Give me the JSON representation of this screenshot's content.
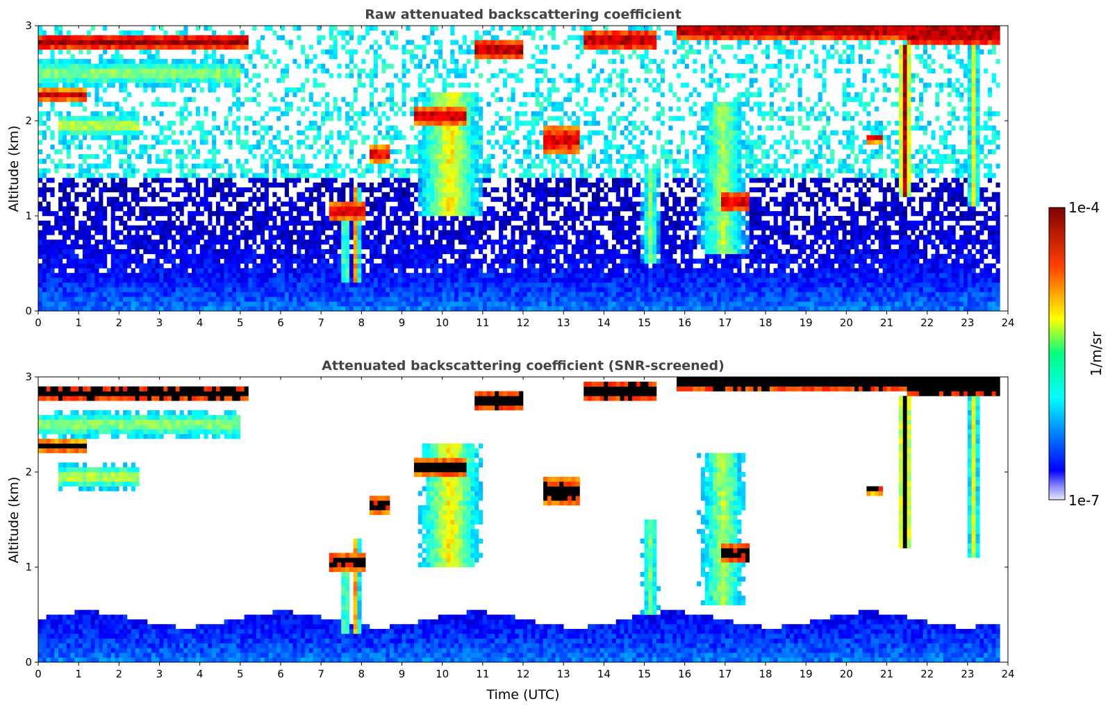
{
  "chart_data": [
    {
      "type": "heatmap",
      "title": "Raw attenuated backscattering coefficient",
      "xlabel": "",
      "ylabel": "Altitude (km)",
      "xlim": [
        0,
        24
      ],
      "ylim": [
        0,
        3
      ],
      "xticks": [
        0,
        1,
        2,
        3,
        4,
        5,
        6,
        7,
        8,
        9,
        10,
        11,
        12,
        13,
        14,
        15,
        16,
        17,
        18,
        19,
        20,
        21,
        22,
        23,
        24
      ],
      "yticks": [
        0,
        1,
        2,
        3
      ],
      "screened": false,
      "features": [
        {
          "kind": "layer",
          "t0": 0.0,
          "t1": 5.2,
          "alt": 2.83,
          "thick": 0.08,
          "level": 1.0
        },
        {
          "kind": "layer",
          "t0": 0.0,
          "t1": 1.2,
          "alt": 2.27,
          "thick": 0.06,
          "level": 0.95
        },
        {
          "kind": "layer",
          "t0": 10.8,
          "t1": 12.0,
          "alt": 2.75,
          "thick": 0.1,
          "level": 1.0
        },
        {
          "kind": "layer",
          "t0": 13.5,
          "t1": 15.3,
          "alt": 2.85,
          "thick": 0.1,
          "level": 1.0
        },
        {
          "kind": "layer",
          "t0": 15.8,
          "t1": 24.0,
          "alt": 2.95,
          "thick": 0.1,
          "level": 1.0
        },
        {
          "kind": "layer",
          "t0": 21.5,
          "t1": 23.8,
          "alt": 2.9,
          "thick": 0.12,
          "level": 1.0
        },
        {
          "kind": "layer",
          "t0": 9.3,
          "t1": 10.6,
          "alt": 2.05,
          "thick": 0.08,
          "level": 1.0
        },
        {
          "kind": "layer",
          "t0": 8.2,
          "t1": 8.7,
          "alt": 1.65,
          "thick": 0.08,
          "level": 0.95
        },
        {
          "kind": "layer",
          "t0": 7.2,
          "t1": 8.1,
          "alt": 1.05,
          "thick": 0.1,
          "level": 0.95
        },
        {
          "kind": "layer",
          "t0": 12.5,
          "t1": 13.4,
          "alt": 1.8,
          "thick": 0.15,
          "level": 0.95
        },
        {
          "kind": "layer",
          "t0": 16.9,
          "t1": 17.6,
          "alt": 1.15,
          "thick": 0.12,
          "level": 0.95
        },
        {
          "kind": "layer",
          "t0": 20.5,
          "t1": 20.9,
          "alt": 1.82,
          "thick": 0.05,
          "level": 0.9
        },
        {
          "kind": "diffuse",
          "t0": 0.5,
          "t1": 2.5,
          "alt": 1.95,
          "thick": 0.25,
          "level": 0.6
        },
        {
          "kind": "diffuse",
          "t0": 0.0,
          "t1": 5.0,
          "alt": 2.5,
          "thick": 0.3,
          "level": 0.55
        },
        {
          "kind": "plume",
          "t0": 9.4,
          "t1": 11.0,
          "top": 2.3,
          "bottom": 1.0,
          "level": 0.65
        },
        {
          "kind": "plume",
          "t0": 16.3,
          "t1": 17.6,
          "top": 2.2,
          "bottom": 0.6,
          "level": 0.55
        },
        {
          "kind": "plume",
          "t0": 14.9,
          "t1": 15.4,
          "top": 1.5,
          "bottom": 0.5,
          "level": 0.5
        },
        {
          "kind": "streak",
          "t0": 21.3,
          "t1": 21.6,
          "top": 2.8,
          "bottom": 1.2,
          "level": 0.95
        },
        {
          "kind": "streak",
          "t0": 23.0,
          "t1": 23.3,
          "top": 2.9,
          "bottom": 1.1,
          "level": 0.6
        },
        {
          "kind": "streak",
          "t0": 7.5,
          "t1": 7.7,
          "top": 1.1,
          "bottom": 0.3,
          "level": 0.6
        },
        {
          "kind": "streak",
          "t0": 7.8,
          "t1": 7.95,
          "top": 1.3,
          "bottom": 0.3,
          "level": 0.9
        }
      ]
    },
    {
      "type": "heatmap",
      "title": "Attenuated backscattering coefficient (SNR-screened)",
      "xlabel": "Time (UTC)",
      "ylabel": "Altitude (km)",
      "xlim": [
        0,
        24
      ],
      "ylim": [
        0,
        3
      ],
      "xticks": [
        0,
        1,
        2,
        3,
        4,
        5,
        6,
        7,
        8,
        9,
        10,
        11,
        12,
        13,
        14,
        15,
        16,
        17,
        18,
        19,
        20,
        21,
        22,
        23,
        24
      ],
      "yticks": [
        0,
        1,
        2,
        3
      ],
      "screened": true
    }
  ],
  "colorbar": {
    "label": "1/m/sr",
    "max_label": "1e-4",
    "min_label": "1e-7",
    "range": [
      1e-07,
      0.0001
    ],
    "scale": "log",
    "colormap": "jet"
  },
  "colors": {
    "title": "#444444",
    "screened_saturated": "#000000",
    "background": "#ffffff"
  }
}
